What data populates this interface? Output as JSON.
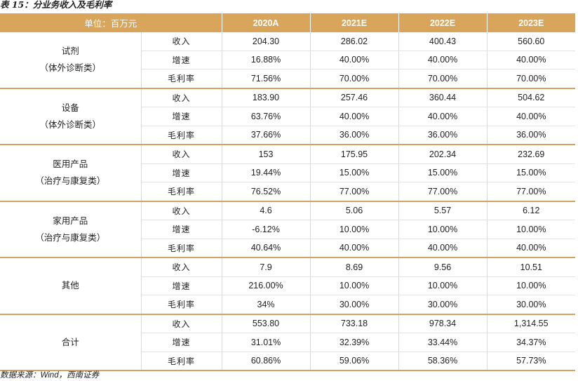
{
  "title": "表 15：分业务收入及毛利率",
  "header": {
    "unit_label": "单位：百万元",
    "years": [
      "2020A",
      "2021E",
      "2022E",
      "2023E"
    ]
  },
  "groups": [
    {
      "name": "试剂",
      "sub": "（体外诊断类）",
      "rows": [
        {
          "metric": "收入",
          "values": [
            "204.30",
            "286.02",
            "400.43",
            "560.60"
          ]
        },
        {
          "metric": "增速",
          "values": [
            "16.88%",
            "40.00%",
            "40.00%",
            "40.00%"
          ]
        },
        {
          "metric": "毛利率",
          "values": [
            "71.56%",
            "70.00%",
            "70.00%",
            "70.00%"
          ]
        }
      ]
    },
    {
      "name": "设备",
      "sub": "（体外诊断类）",
      "rows": [
        {
          "metric": "收入",
          "values": [
            "183.90",
            "257.46",
            "360.44",
            "504.62"
          ]
        },
        {
          "metric": "增速",
          "values": [
            "63.76%",
            "40.00%",
            "40.00%",
            "40.00%"
          ]
        },
        {
          "metric": "毛利率",
          "values": [
            "37.66%",
            "36.00%",
            "36.00%",
            "36.00%"
          ]
        }
      ]
    },
    {
      "name": "医用产品",
      "sub": "（治疗与康复类）",
      "rows": [
        {
          "metric": "收入",
          "values": [
            "153",
            "175.95",
            "202.34",
            "232.69"
          ]
        },
        {
          "metric": "增速",
          "values": [
            "19.44%",
            "15.00%",
            "15.00%",
            "15.00%"
          ]
        },
        {
          "metric": "毛利率",
          "values": [
            "76.52%",
            "77.00%",
            "77.00%",
            "77.00%"
          ]
        }
      ]
    },
    {
      "name": "家用产品",
      "sub": "（治疗与康复类）",
      "rows": [
        {
          "metric": "收入",
          "values": [
            "4.6",
            "5.06",
            "5.57",
            "6.12"
          ]
        },
        {
          "metric": "增速",
          "values": [
            "-6.12%",
            "10.00%",
            "10.00%",
            "10.00%"
          ]
        },
        {
          "metric": "毛利率",
          "values": [
            "40.64%",
            "40.00%",
            "40.00%",
            "40.00%"
          ]
        }
      ]
    },
    {
      "name": "其他",
      "sub": "",
      "rows": [
        {
          "metric": "收入",
          "values": [
            "7.9",
            "8.69",
            "9.56",
            "10.51"
          ]
        },
        {
          "metric": "增速",
          "values": [
            "216.00%",
            "10.00%",
            "10.00%",
            "10.00%"
          ]
        },
        {
          "metric": "毛利率",
          "values": [
            "34%",
            "30.00%",
            "30.00%",
            "30.00%"
          ]
        }
      ]
    },
    {
      "name": "合计",
      "sub": "",
      "rows": [
        {
          "metric": "收入",
          "values": [
            "553.80",
            "733.18",
            "978.34",
            "1,314.55"
          ]
        },
        {
          "metric": "增速",
          "values": [
            "31.01%",
            "32.39%",
            "33.44%",
            "34.37%"
          ]
        },
        {
          "metric": "毛利率",
          "values": [
            "60.86%",
            "59.06%",
            "58.36%",
            "57.73%"
          ]
        }
      ]
    }
  ],
  "source": {
    "prefix": "数据来源：",
    "wind": "Wind",
    "suffix": "，西南证券"
  },
  "colors": {
    "header_bg": "#d8a55a",
    "group_rule": "#d3a260"
  }
}
